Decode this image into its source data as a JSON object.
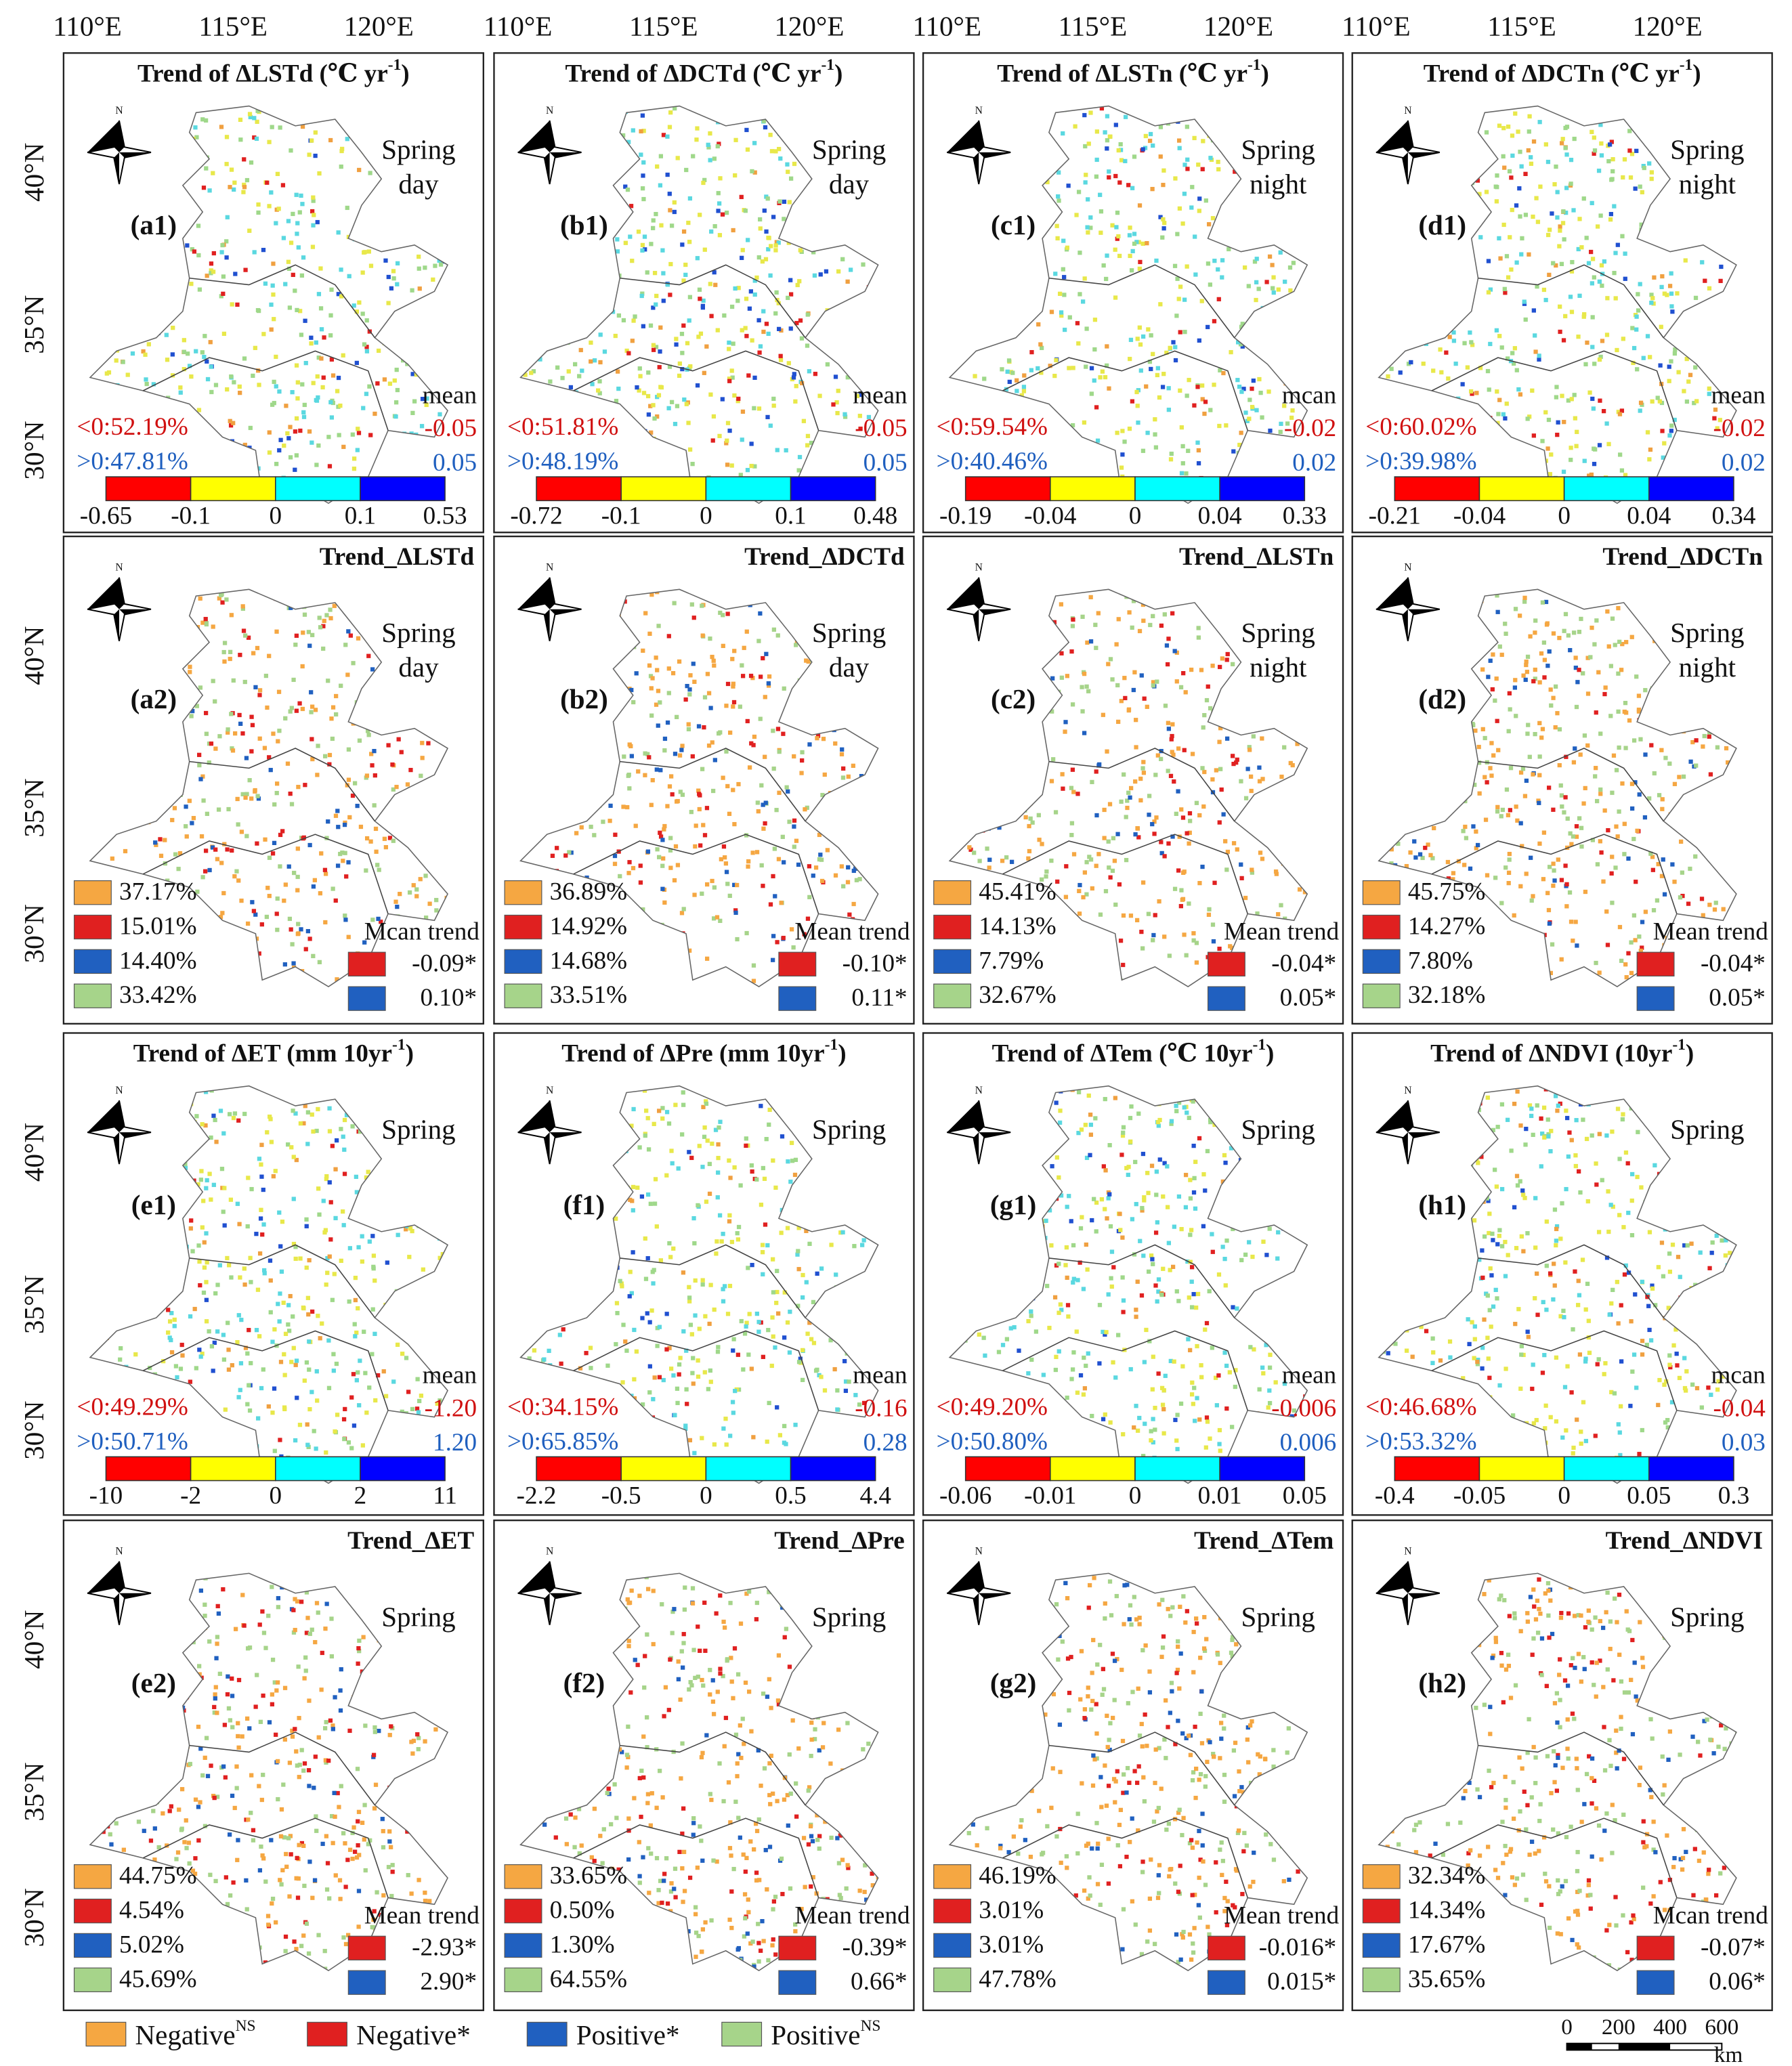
{
  "lon_labels": [
    "110°E",
    "115°E",
    "120°E"
  ],
  "lat_labels": [
    "40°N",
    "35°N",
    "30°N"
  ],
  "panels": [
    {
      "title": "Trend of ΔLSTd (℃ yr",
      "title_sup": "-1",
      "title_end": ")",
      "season": [
        "Spring",
        "day"
      ],
      "label": "(a1)",
      "negative": "<0:52.19%",
      "positive": ">0:47.81%",
      "mean_label": "mean",
      "mean_negative": "-0.05",
      "mean_positive": "0.05",
      "colorbar_ticks": [
        "-0.65",
        "-0.1",
        "0",
        "0.1",
        "0.53"
      ]
    },
    {
      "title": "Trend of  ΔDCTd (℃ yr",
      "title_sup": "-1",
      "title_end": ")",
      "season": [
        "Spring",
        "day"
      ],
      "label": "(b1)",
      "negative": "<0:51.81%",
      "positive": ">0:48.19%",
      "mean_label": "mean",
      "mean_negative": "-0.05",
      "mean_positive": "0.05",
      "colorbar_ticks": [
        "-0.72",
        "-0.1",
        "0",
        "0.1",
        "0.48"
      ]
    },
    {
      "title": "Trend of ΔLSTn (℃ yr",
      "title_sup": "-1",
      "title_end": ")",
      "season": [
        "Spring",
        "night"
      ],
      "label": "(c1)",
      "negative": "<0:59.54%",
      "positive": ">0:40.46%",
      "mean_label": "mcan",
      "mean_negative": "-0.02",
      "mean_positive": "0.02",
      "colorbar_ticks": [
        "-0.19",
        "-0.04",
        "0",
        "0.04",
        "0.33"
      ]
    },
    {
      "title": "Trend of  ΔDCTn (℃ yr",
      "title_sup": "-1",
      "title_end": ")",
      "season": [
        "Spring",
        "night"
      ],
      "label": "(d1)",
      "negative": "<0:60.02%",
      "positive": ">0:39.98%",
      "mean_label": "mean",
      "mean_negative": "-0.02",
      "mean_positive": "0.02",
      "colorbar_ticks": [
        "-0.21",
        "-0.04",
        "0",
        "0.04",
        "0.34"
      ]
    },
    {
      "title": "Trend_ΔLSTd",
      "season": [
        "Spring",
        "day"
      ],
      "label": "(a2)",
      "percentages": [
        "37.17%",
        "15.01%",
        "14.40%",
        "33.42%"
      ],
      "mean_label": "Mcan trend",
      "mean_negative": "-0.09*",
      "mean_positive": "0.10*"
    },
    {
      "title": "Trend_ΔDCTd",
      "season": [
        "Spring",
        "day"
      ],
      "label": "(b2)",
      "percentages": [
        "36.89%",
        "14.92%",
        "14.68%",
        "33.51%"
      ],
      "mean_label": "Mean trend",
      "mean_negative": "-0.10*",
      "mean_positive": "0.11*"
    },
    {
      "title": "Trend_ΔLSTn",
      "season": [
        "Spring",
        "night"
      ],
      "label": "(c2)",
      "percentages": [
        "45.41%",
        "14.13%",
        "7.79%",
        "32.67%"
      ],
      "mean_label": "Mean trend",
      "mean_negative": "-0.04*",
      "mean_positive": "0.05*"
    },
    {
      "title": "Trend_ΔDCTn",
      "season": [
        "Spring",
        "night"
      ],
      "label": "(d2)",
      "percentages": [
        "45.75%",
        "14.27%",
        "7.80%",
        "32.18%"
      ],
      "mean_label": "Mean trend",
      "mean_negative": "-0.04*",
      "mean_positive": "0.05*"
    },
    {
      "title": "Trend of ΔET (mm 10yr",
      "title_sup": "-1",
      "title_end": ")",
      "season": [
        "Spring"
      ],
      "label": "(e1)",
      "negative": "<0:49.29%",
      "positive": ">0:50.71%",
      "mean_label": "mean",
      "mean_negative": "-1.20",
      "mean_positive": "1.20",
      "colorbar_ticks": [
        "-10",
        "-2",
        "0",
        "2",
        "11"
      ]
    },
    {
      "title": "Trend of ΔPre (mm 10yr",
      "title_sup": "-1",
      "title_end": ")",
      "season": [
        "Spring"
      ],
      "label": "(f1)",
      "negative": "<0:34.15%",
      "positive": ">0:65.85%",
      "mean_label": "mean",
      "mean_negative": "-0.16",
      "mean_positive": "0.28",
      "colorbar_ticks": [
        "-2.2",
        "-0.5",
        "0",
        "0.5",
        "4.4"
      ]
    },
    {
      "title": "Trend of ΔTem (℃ 10yr",
      "title_sup": "-1",
      "title_end": ")",
      "season": [
        "Spring"
      ],
      "label": "(g1)",
      "negative": "<0:49.20%",
      "positive": ">0:50.80%",
      "mean_label": "mean",
      "mean_negative": "-0.006",
      "mean_positive": "0.006",
      "colorbar_ticks": [
        "-0.06",
        "-0.01",
        "0",
        "0.01",
        "0.05"
      ]
    },
    {
      "title": "Trend of ΔNDVI (10yr",
      "title_sup": "-1",
      "title_end": ")",
      "season": [
        "Spring"
      ],
      "label": "(h1)",
      "negative": "<0:46.68%",
      "positive": ">0:53.32%",
      "mean_label": "mcan",
      "mean_negative": "-0.04",
      "mean_positive": "0.03",
      "colorbar_ticks": [
        "-0.4",
        "-0.05",
        "0",
        "0.05",
        "0.3"
      ]
    },
    {
      "title": "Trend_ΔET",
      "season": [
        "Spring"
      ],
      "label": "(e2)",
      "percentages": [
        "44.75%",
        "4.54%",
        "5.02%",
        "45.69%"
      ],
      "mean_label": "Mean trend",
      "mean_negative": "-2.93*",
      "mean_positive": "2.90*"
    },
    {
      "title": "Trend_ΔPre",
      "season": [
        "Spring"
      ],
      "label": "(f2)",
      "percentages": [
        "33.65%",
        "0.50%",
        "1.30%",
        "64.55%"
      ],
      "mean_label": "Mean trend",
      "mean_negative": "-0.39*",
      "mean_positive": "0.66*"
    },
    {
      "title": "Trend_ΔTem",
      "season": [
        "Spring"
      ],
      "label": "(g2)",
      "percentages": [
        "46.19%",
        "3.01%",
        "3.01%",
        "47.78%"
      ],
      "mean_label": "Mean trend",
      "mean_negative": "-0.016*",
      "mean_positive": "0.015*"
    },
    {
      "title": "Trend_ΔNDVI",
      "season": [
        "Spring"
      ],
      "label": "(h2)",
      "percentages": [
        "32.34%",
        "14.34%",
        "17.67%",
        "35.65%"
      ],
      "mean_label": "Mcan trend",
      "mean_negative": "-0.07*",
      "mean_positive": "0.06*"
    }
  ],
  "legend": [
    {
      "text": "Negative",
      "sup": "NS"
    },
    {
      "text": "Negative*"
    },
    {
      "text": "Positive*"
    },
    {
      "text": "Positive",
      "sup": "NS"
    }
  ],
  "scale_bar": {
    "ticks": [
      "0",
      "200",
      "400",
      "600"
    ],
    "unit": "km"
  }
}
